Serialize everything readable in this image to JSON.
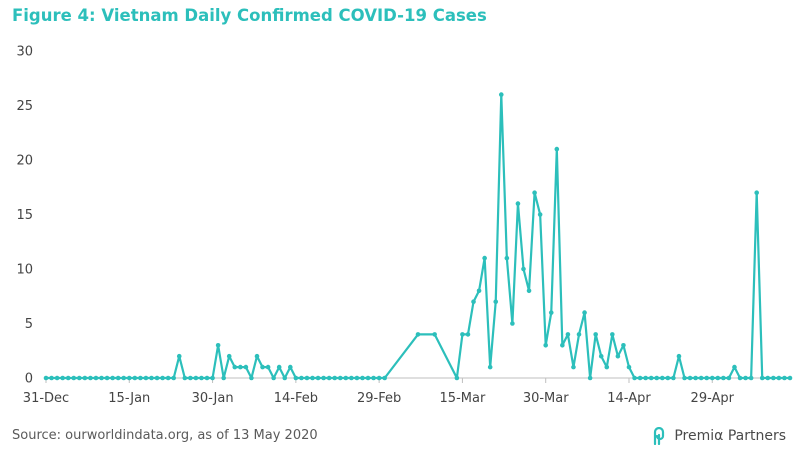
{
  "title": "Figure 4: Vietnam Daily Confirmed COVID-19 Cases",
  "source": "Source: ourworldindata.org,  as of 13 May 2020",
  "brand": {
    "name": "Premiα Partners",
    "logo_icon": "premia-logo-icon"
  },
  "colors": {
    "title": "#2cbfbb",
    "series": "#2cbfbb",
    "axis": "#bfbfbf",
    "text": "#444444"
  },
  "chart_data": {
    "type": "line",
    "title": "Figure 4: Vietnam Daily Confirmed COVID-19 Cases",
    "xlabel": "",
    "ylabel": "",
    "ylim": [
      0,
      30
    ],
    "yticks": [
      0,
      5,
      10,
      15,
      20,
      25,
      30
    ],
    "xlim": [
      "2019-12-31",
      "2020-05-13"
    ],
    "xticks": [
      {
        "date": "2019-12-31",
        "label": "31-Dec"
      },
      {
        "date": "2020-01-15",
        "label": "15-Jan"
      },
      {
        "date": "2020-01-30",
        "label": "30-Jan"
      },
      {
        "date": "2020-02-14",
        "label": "14-Feb"
      },
      {
        "date": "2020-02-29",
        "label": "29-Feb"
      },
      {
        "date": "2020-03-15",
        "label": "15-Mar"
      },
      {
        "date": "2020-03-30",
        "label": "30-Mar"
      },
      {
        "date": "2020-04-14",
        "label": "14-Apr"
      },
      {
        "date": "2020-04-29",
        "label": "29-Apr"
      }
    ],
    "grid": false,
    "legend": "none",
    "series": [
      {
        "points": [
          [
            "2019-12-31",
            0
          ],
          [
            "2020-01-01",
            0
          ],
          [
            "2020-01-02",
            0
          ],
          [
            "2020-01-03",
            0
          ],
          [
            "2020-01-04",
            0
          ],
          [
            "2020-01-05",
            0
          ],
          [
            "2020-01-06",
            0
          ],
          [
            "2020-01-07",
            0
          ],
          [
            "2020-01-08",
            0
          ],
          [
            "2020-01-09",
            0
          ],
          [
            "2020-01-10",
            0
          ],
          [
            "2020-01-11",
            0
          ],
          [
            "2020-01-12",
            0
          ],
          [
            "2020-01-13",
            0
          ],
          [
            "2020-01-14",
            0
          ],
          [
            "2020-01-15",
            0
          ],
          [
            "2020-01-16",
            0
          ],
          [
            "2020-01-17",
            0
          ],
          [
            "2020-01-18",
            0
          ],
          [
            "2020-01-19",
            0
          ],
          [
            "2020-01-20",
            0
          ],
          [
            "2020-01-21",
            0
          ],
          [
            "2020-01-22",
            0
          ],
          [
            "2020-01-23",
            0
          ],
          [
            "2020-01-24",
            2
          ],
          [
            "2020-01-25",
            0
          ],
          [
            "2020-01-26",
            0
          ],
          [
            "2020-01-27",
            0
          ],
          [
            "2020-01-28",
            0
          ],
          [
            "2020-01-29",
            0
          ],
          [
            "2020-01-30",
            0
          ],
          [
            "2020-01-31",
            3
          ],
          [
            "2020-02-01",
            0
          ],
          [
            "2020-02-02",
            2
          ],
          [
            "2020-02-03",
            1
          ],
          [
            "2020-02-04",
            1
          ],
          [
            "2020-02-05",
            1
          ],
          [
            "2020-02-06",
            0
          ],
          [
            "2020-02-07",
            2
          ],
          [
            "2020-02-08",
            1
          ],
          [
            "2020-02-09",
            1
          ],
          [
            "2020-02-10",
            0
          ],
          [
            "2020-02-11",
            1
          ],
          [
            "2020-02-12",
            0
          ],
          [
            "2020-02-13",
            1
          ],
          [
            "2020-02-14",
            0
          ],
          [
            "2020-02-15",
            0
          ],
          [
            "2020-02-16",
            0
          ],
          [
            "2020-02-17",
            0
          ],
          [
            "2020-02-18",
            0
          ],
          [
            "2020-02-19",
            0
          ],
          [
            "2020-02-20",
            0
          ],
          [
            "2020-02-21",
            0
          ],
          [
            "2020-02-22",
            0
          ],
          [
            "2020-02-23",
            0
          ],
          [
            "2020-02-24",
            0
          ],
          [
            "2020-02-25",
            0
          ],
          [
            "2020-02-26",
            0
          ],
          [
            "2020-02-27",
            0
          ],
          [
            "2020-02-28",
            0
          ],
          [
            "2020-02-29",
            0
          ],
          [
            "2020-03-01",
            0
          ],
          [
            "2020-03-07",
            4
          ],
          [
            "2020-03-10",
            4
          ],
          [
            "2020-03-14",
            0
          ],
          [
            "2020-03-15",
            4
          ],
          [
            "2020-03-16",
            4
          ],
          [
            "2020-03-17",
            7
          ],
          [
            "2020-03-18",
            8
          ],
          [
            "2020-03-19",
            11
          ],
          [
            "2020-03-20",
            1
          ],
          [
            "2020-03-21",
            7
          ],
          [
            "2020-03-22",
            26
          ],
          [
            "2020-03-23",
            11
          ],
          [
            "2020-03-24",
            5
          ],
          [
            "2020-03-25",
            16
          ],
          [
            "2020-03-26",
            10
          ],
          [
            "2020-03-27",
            8
          ],
          [
            "2020-03-28",
            17
          ],
          [
            "2020-03-29",
            15
          ],
          [
            "2020-03-30",
            3
          ],
          [
            "2020-03-31",
            6
          ],
          [
            "2020-04-01",
            21
          ],
          [
            "2020-04-02",
            3
          ],
          [
            "2020-04-03",
            4
          ],
          [
            "2020-04-04",
            1
          ],
          [
            "2020-04-05",
            4
          ],
          [
            "2020-04-06",
            6
          ],
          [
            "2020-04-07",
            0
          ],
          [
            "2020-04-08",
            4
          ],
          [
            "2020-04-09",
            2
          ],
          [
            "2020-04-10",
            1
          ],
          [
            "2020-04-11",
            4
          ],
          [
            "2020-04-12",
            2
          ],
          [
            "2020-04-13",
            3
          ],
          [
            "2020-04-14",
            1
          ],
          [
            "2020-04-15",
            0
          ],
          [
            "2020-04-16",
            0
          ],
          [
            "2020-04-17",
            0
          ],
          [
            "2020-04-18",
            0
          ],
          [
            "2020-04-19",
            0
          ],
          [
            "2020-04-20",
            0
          ],
          [
            "2020-04-21",
            0
          ],
          [
            "2020-04-22",
            0
          ],
          [
            "2020-04-23",
            2
          ],
          [
            "2020-04-24",
            0
          ],
          [
            "2020-04-25",
            0
          ],
          [
            "2020-04-26",
            0
          ],
          [
            "2020-04-27",
            0
          ],
          [
            "2020-04-28",
            0
          ],
          [
            "2020-04-29",
            0
          ],
          [
            "2020-04-30",
            0
          ],
          [
            "2020-05-01",
            0
          ],
          [
            "2020-05-02",
            0
          ],
          [
            "2020-05-03",
            1
          ],
          [
            "2020-05-04",
            0
          ],
          [
            "2020-05-05",
            0
          ],
          [
            "2020-05-06",
            0
          ],
          [
            "2020-05-07",
            17
          ],
          [
            "2020-05-08",
            0
          ],
          [
            "2020-05-09",
            0
          ],
          [
            "2020-05-10",
            0
          ],
          [
            "2020-05-11",
            0
          ],
          [
            "2020-05-12",
            0
          ],
          [
            "2020-05-13",
            0
          ]
        ]
      }
    ]
  }
}
